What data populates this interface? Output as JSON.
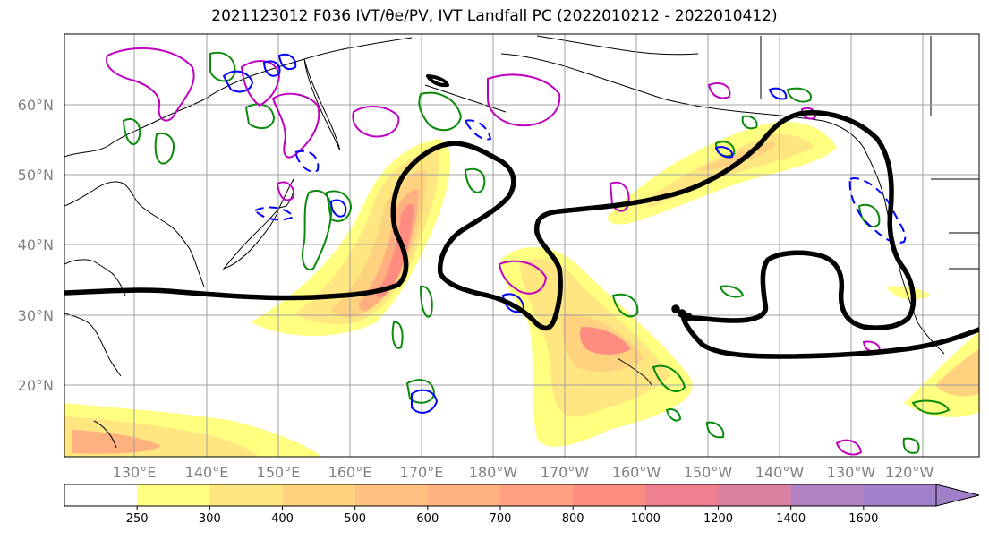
{
  "title": "2021123012 F036 IVT/θe/PV, IVT Landfall PC (2022010212 - 2022010412)",
  "map": {
    "lat_labels": [
      "60°N",
      "50°N",
      "40°N",
      "30°N",
      "20°N"
    ],
    "lon_labels": [
      "130°E",
      "140°E",
      "150°E",
      "160°E",
      "170°E",
      "180°W",
      "170°W",
      "160°W",
      "150°W",
      "140°W",
      "130°W",
      "120°W"
    ]
  },
  "colorbar": {
    "ticks": [
      "250",
      "300",
      "400",
      "500",
      "600",
      "700",
      "800",
      "1000",
      "1200",
      "1400",
      "1600"
    ],
    "colors": [
      "#ffffff",
      "#ffff80",
      "#ffe680",
      "#ffd280",
      "#ffc080",
      "#ffb080",
      "#ffa080",
      "#ff8c80",
      "#ef8090",
      "#da80a0",
      "#b080c0",
      "#a080c8"
    ]
  },
  "styles": {
    "pv_color": "#0a8a0a",
    "theta_e_color": "#c000c0",
    "neg_color": "#0000ff",
    "pc_color": "#000000"
  }
}
